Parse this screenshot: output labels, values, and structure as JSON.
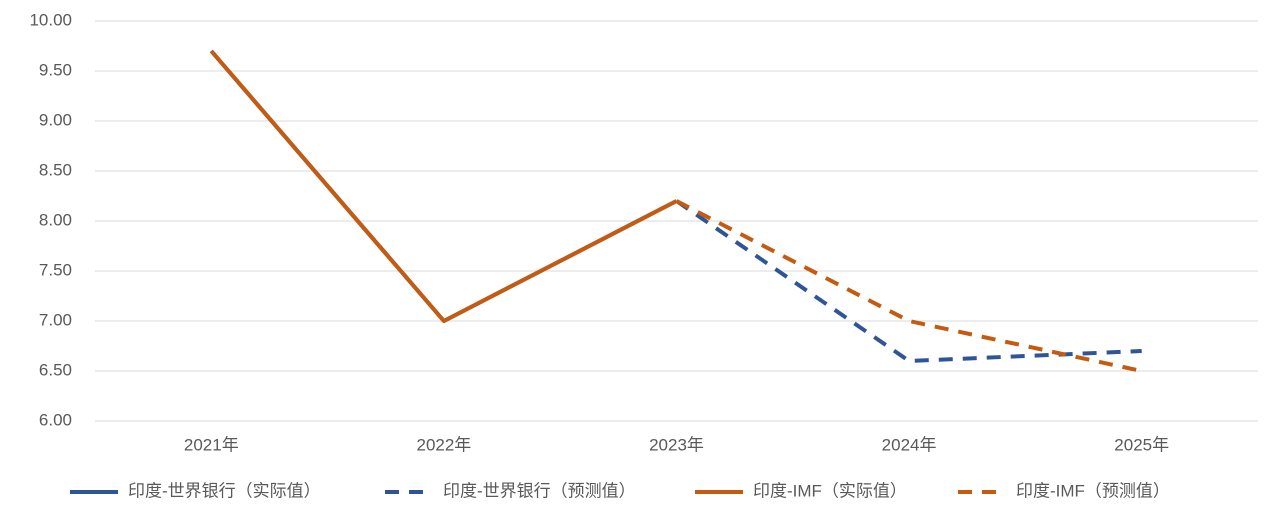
{
  "chart_data": {
    "type": "line",
    "categories": [
      "2021年",
      "2022年",
      "2023年",
      "2024年",
      "2025年"
    ],
    "ylim": [
      6,
      10
    ],
    "yticks": [
      {
        "value": 6,
        "label": "6.00"
      },
      {
        "value": 6.5,
        "label": "6.50"
      },
      {
        "value": 7,
        "label": "7.00"
      },
      {
        "value": 7.5,
        "label": "7.50"
      },
      {
        "value": 8,
        "label": "8.00"
      },
      {
        "value": 8.5,
        "label": "8.50"
      },
      {
        "value": 9,
        "label": "9.00"
      },
      {
        "value": 9.5,
        "label": "9.50"
      },
      {
        "value": 10,
        "label": "10.00"
      }
    ],
    "grid": true,
    "legend": "bottom",
    "series": [
      {
        "name": "印度-世界银行（实际值）",
        "color": "#2f5597",
        "dashed": false,
        "values": [
          9.7,
          7.0,
          8.2,
          null,
          null
        ]
      },
      {
        "name": "印度-世界银行（预测值）",
        "color": "#2f5597",
        "dashed": true,
        "values": [
          null,
          null,
          8.2,
          6.6,
          6.7
        ]
      },
      {
        "name": "印度-IMF（实际值）",
        "color": "#c55a11",
        "dashed": false,
        "values": [
          9.7,
          7.0,
          8.2,
          null,
          null
        ]
      },
      {
        "name": "印度-IMF（预测值）",
        "color": "#c55a11",
        "dashed": true,
        "values": [
          null,
          null,
          8.2,
          7.0,
          6.5
        ]
      }
    ]
  }
}
